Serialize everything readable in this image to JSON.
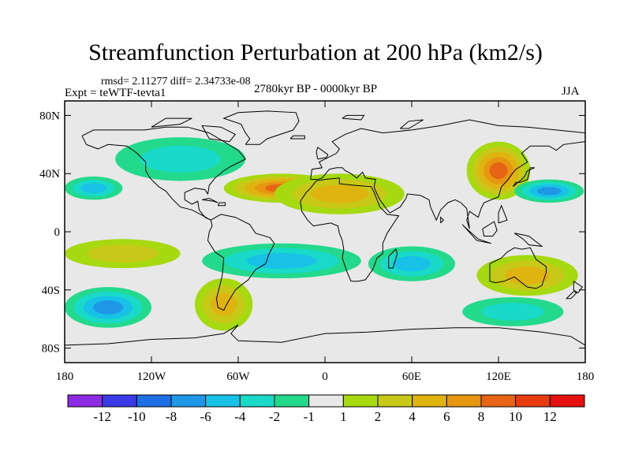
{
  "title": "Streamfunction Perturbation at 200 hPa (km2/s)",
  "stats": "rmsd= 2.11277  diff= 2.34733e-08",
  "experiment": "Expt = teWTF-tevta1",
  "period": "2780kyr BP - 0000kyr BP",
  "season": "JJA",
  "colors": {
    "background": "#ffffff",
    "neutral": "#e8e8e8",
    "map_frame": "#000000",
    "coast": "#000000"
  },
  "axes": {
    "lon_range": [
      -180,
      180
    ],
    "lat_range": [
      -90,
      90
    ],
    "lat_ticks": [
      {
        "value": 80,
        "label": "80N"
      },
      {
        "value": 40,
        "label": "40N"
      },
      {
        "value": 0,
        "label": "0"
      },
      {
        "value": -40,
        "label": "40S"
      },
      {
        "value": -80,
        "label": "80S"
      }
    ],
    "lon_ticks": [
      {
        "value": -180,
        "label": "180"
      },
      {
        "value": -120,
        "label": "120W"
      },
      {
        "value": -60,
        "label": "60W"
      },
      {
        "value": 0,
        "label": "0"
      },
      {
        "value": 60,
        "label": "60E"
      },
      {
        "value": 120,
        "label": "120E"
      },
      {
        "value": 180,
        "label": "180"
      }
    ]
  },
  "colorbar": {
    "boxes": [
      "#8c2be2",
      "#3a3ae6",
      "#1e6fe6",
      "#1e98e6",
      "#18c2e6",
      "#19d9c8",
      "#22d98c",
      "#e8e8e8",
      "#a6d90f",
      "#c8c818",
      "#e0b410",
      "#e69610",
      "#e66414",
      "#e63c10",
      "#e61010"
    ],
    "labels": [
      "-12",
      "-10",
      "-8",
      "-6",
      "-4",
      "-2",
      "-1",
      "1",
      "2",
      "4",
      "6",
      "8",
      "10",
      "12"
    ]
  },
  "chart_data": {
    "type": "contour-map",
    "variable": "Streamfunction Perturbation at 200 hPa",
    "units": "km2/s",
    "levels": [
      -12,
      -10,
      -8,
      -6,
      -4,
      -2,
      -1,
      1,
      2,
      4,
      6,
      8,
      10,
      12
    ],
    "features": [
      {
        "lon": -30,
        "lat": 30,
        "value": 8,
        "rx": 40,
        "ry": 10,
        "sign": "positive"
      },
      {
        "lon": 10,
        "lat": 26,
        "value": 4,
        "rx": 45,
        "ry": 14,
        "sign": "positive"
      },
      {
        "lon": 120,
        "lat": 42,
        "value": 8,
        "rx": 22,
        "ry": 20,
        "sign": "positive"
      },
      {
        "lon": 155,
        "lat": 28,
        "value": -6,
        "rx": 24,
        "ry": 8,
        "sign": "negative"
      },
      {
        "lon": -100,
        "lat": 50,
        "value": -2,
        "rx": 45,
        "ry": 15,
        "sign": "negative"
      },
      {
        "lon": -160,
        "lat": 30,
        "value": -4,
        "rx": 20,
        "ry": 8,
        "sign": "negative"
      },
      {
        "lon": -30,
        "lat": -20,
        "value": -4,
        "rx": 55,
        "ry": 12,
        "sign": "negative"
      },
      {
        "lon": 60,
        "lat": -22,
        "value": -4,
        "rx": 30,
        "ry": 12,
        "sign": "negative"
      },
      {
        "lon": -150,
        "lat": -52,
        "value": -6,
        "rx": 30,
        "ry": 14,
        "sign": "negative"
      },
      {
        "lon": 140,
        "lat": -30,
        "value": 4,
        "rx": 35,
        "ry": 14,
        "sign": "positive"
      },
      {
        "lon": -140,
        "lat": -15,
        "value": 2,
        "rx": 40,
        "ry": 10,
        "sign": "positive"
      },
      {
        "lon": 130,
        "lat": -55,
        "value": -2,
        "rx": 35,
        "ry": 10,
        "sign": "negative"
      },
      {
        "lon": -70,
        "lat": -50,
        "value": 4,
        "rx": 20,
        "ry": 18,
        "sign": "positive"
      }
    ]
  }
}
